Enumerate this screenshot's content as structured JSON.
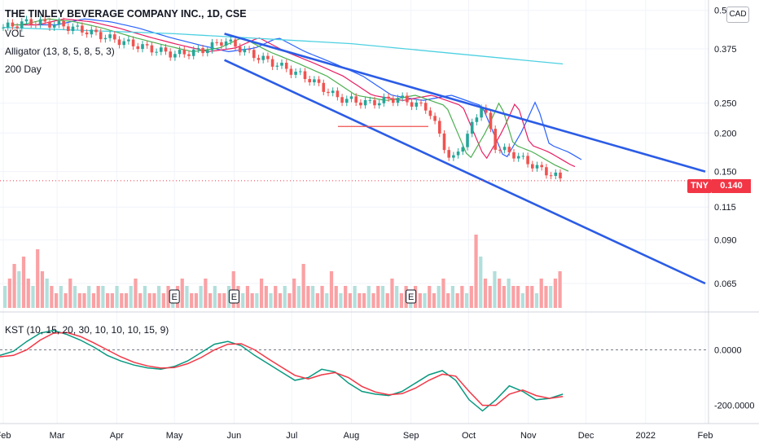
{
  "chart_data": [
    {
      "type": "candlestick",
      "title": "THE TINLEY BEVERAGE COMPANY INC., 1D, CSE",
      "symbol": "TNY",
      "currency": "CAD",
      "last_price": "0.140",
      "y_scale": "log",
      "ylim": [
        0.055,
        0.52
      ],
      "y_ticks": [
        "0.5",
        "0.375",
        "0.250",
        "0.200",
        "0.150",
        "0.115",
        "0.090",
        "0.065"
      ],
      "x_ticks": [
        "Feb",
        "Mar",
        "Apr",
        "May",
        "Jun",
        "Jul",
        "Aug",
        "Sep",
        "Oct",
        "Nov",
        "Dec",
        "2022",
        "Feb"
      ],
      "legend": [
        "VOL",
        "Alligator (13, 8, 5, 8, 5, 3)",
        "200 Day"
      ],
      "earnings_markers": [
        "E",
        "E",
        "E"
      ],
      "close_series": [
        [
          "2021-02-01",
          0.44
        ],
        [
          "2021-02-15",
          0.46
        ],
        [
          "2021-03-01",
          0.45
        ],
        [
          "2021-03-15",
          0.43
        ],
        [
          "2021-04-01",
          0.4
        ],
        [
          "2021-04-15",
          0.38
        ],
        [
          "2021-05-01",
          0.36
        ],
        [
          "2021-05-15",
          0.37
        ],
        [
          "2021-05-27",
          0.4
        ],
        [
          "2021-06-10",
          0.36
        ],
        [
          "2021-06-25",
          0.33
        ],
        [
          "2021-07-10",
          0.3
        ],
        [
          "2021-07-25",
          0.26
        ],
        [
          "2021-08-10",
          0.25
        ],
        [
          "2021-08-25",
          0.26
        ],
        [
          "2021-09-10",
          0.24
        ],
        [
          "2021-09-22",
          0.16
        ],
        [
          "2021-10-01",
          0.2
        ],
        [
          "2021-10-08",
          0.25
        ],
        [
          "2021-10-15",
          0.18
        ],
        [
          "2021-10-25",
          0.17
        ],
        [
          "2021-11-05",
          0.155
        ],
        [
          "2021-11-15",
          0.145
        ],
        [
          "2021-11-19",
          0.14
        ]
      ],
      "trendlines": [
        {
          "from": [
            "2021-05-27",
            0.42
          ],
          "to": [
            "2022-02-01",
            0.15
          ]
        },
        {
          "from": [
            "2021-05-27",
            0.345
          ],
          "to": [
            "2022-02-01",
            0.065
          ]
        },
        {
          "from": [
            "2021-07-25",
            0.21
          ],
          "to": [
            "2021-09-10",
            0.21
          ]
        }
      ],
      "ma_200_day": [
        [
          "2021-02-01",
          0.44
        ],
        [
          "2021-05-01",
          0.42
        ],
        [
          "2021-08-01",
          0.39
        ],
        [
          "2021-11-19",
          0.335
        ]
      ]
    },
    {
      "type": "bar",
      "title": "VOL",
      "values": [
        3,
        4,
        6,
        5,
        7,
        4,
        3,
        8,
        5,
        4,
        3,
        2,
        3,
        2,
        4,
        3,
        2,
        2,
        3,
        2,
        3,
        3,
        2,
        2,
        3,
        2,
        2,
        3,
        4,
        2,
        3,
        2,
        2,
        3,
        2,
        3,
        2,
        3,
        4,
        3,
        2,
        2,
        3,
        4,
        2,
        3,
        2,
        2,
        3,
        5,
        3,
        2,
        3,
        2,
        2,
        4,
        3,
        2,
        3,
        2,
        3,
        2,
        4,
        3,
        6,
        3,
        3,
        2,
        3,
        2,
        5,
        3,
        2,
        3,
        2,
        3,
        2,
        2,
        3,
        2,
        3,
        3,
        2,
        4,
        3,
        2,
        3,
        2,
        3,
        2,
        2,
        3,
        2,
        3,
        4,
        2,
        3,
        2,
        3,
        2,
        3,
        10,
        7,
        4,
        3,
        5,
        4,
        3,
        4,
        3,
        3,
        2,
        3,
        3,
        2,
        4,
        3,
        3,
        4,
        5
      ]
    },
    {
      "type": "line",
      "title": "KST (10, 15, 20, 30, 10, 10, 10, 15, 9)",
      "y_ticks": [
        "0.0000",
        "-200.0000"
      ],
      "ylim": [
        -260,
        110
      ],
      "series": [
        {
          "values": [
            -20,
            -5,
            30,
            60,
            70,
            55,
            35,
            10,
            -20,
            -40,
            -55,
            -65,
            -70,
            -60,
            -40,
            -10,
            20,
            30,
            15,
            -20,
            -50,
            -80,
            -110,
            -100,
            -70,
            -80,
            -120,
            -150,
            -160,
            -165,
            -150,
            -120,
            -90,
            -75,
            -110,
            -180,
            -220,
            -180,
            -130,
            -150,
            -180,
            -175,
            -160
          ]
        },
        {
          "values": [
            -25,
            -20,
            0,
            35,
            60,
            62,
            48,
            25,
            0,
            -25,
            -45,
            -58,
            -66,
            -64,
            -50,
            -28,
            0,
            20,
            22,
            0,
            -32,
            -62,
            -92,
            -105,
            -90,
            -82,
            -100,
            -132,
            -152,
            -162,
            -158,
            -138,
            -110,
            -88,
            -95,
            -150,
            -200,
            -200,
            -160,
            -145,
            -165,
            -175,
            -168
          ]
        }
      ]
    }
  ],
  "colors": {
    "up": "#26a69a",
    "down": "#ef5350",
    "jaw": "#2962ff",
    "teeth": "#e91e63",
    "lips": "#4caf50",
    "ma200": "#4dd0e1",
    "trend": "#2b5ce6",
    "kst": "#089981",
    "kst_signal": "#f23645"
  }
}
